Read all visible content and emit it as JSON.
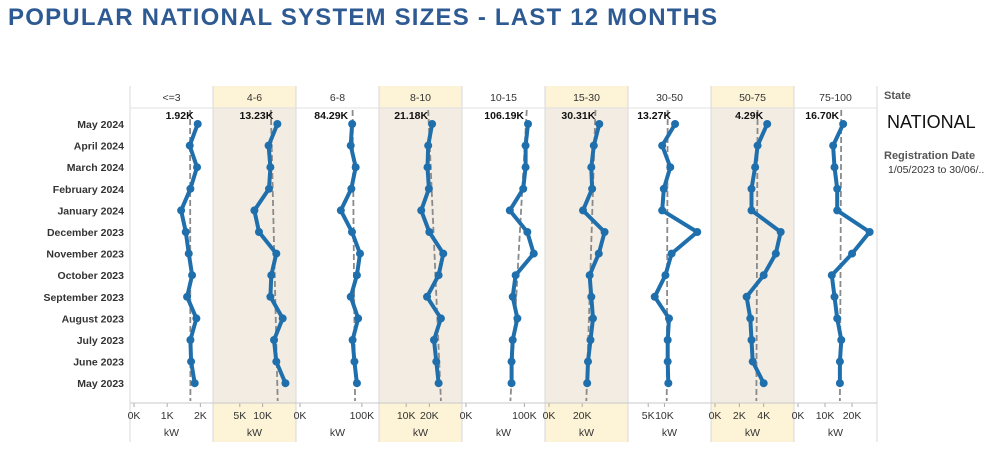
{
  "title": "POPULAR NATIONAL SYSTEM SIZES - LAST 12 MONTHS",
  "filters": {
    "state_label": "State",
    "state_value": "NATIONAL",
    "date_label": "Registration Date",
    "date_value": "1/05/2023 to 30/06/.."
  },
  "colors": {
    "line": "#1f6fad",
    "band": "#f3ece2",
    "band_header": "#fdf3d6",
    "trend": "#8a8a8a",
    "title": "#2e5a94"
  },
  "chart_data": {
    "type": "line",
    "orientation": "vertical-small-multiples",
    "unit_label": "kW",
    "categories": [
      "May 2024",
      "April 2024",
      "March 2024",
      "February 2024",
      "January 2024",
      "December 2023",
      "November 2023",
      "October 2023",
      "September 2023",
      "August 2023",
      "July 2023",
      "June 2023",
      "May 2023"
    ],
    "panels": [
      {
        "name": "<=3",
        "shaded": false,
        "top_label": "1.92K",
        "max": 2200,
        "ticks": [
          {
            "v": 0,
            "t": "0K"
          },
          {
            "v": 1000,
            "t": "1K"
          },
          {
            "v": 2000,
            "t": "2K"
          }
        ],
        "values": [
          1920,
          1680,
          1900,
          1700,
          1420,
          1560,
          1650,
          1750,
          1600,
          1880,
          1700,
          1720,
          1830
        ],
        "trend": [
          1690,
          1700
        ]
      },
      {
        "name": "4-6",
        "shaded": true,
        "top_label": "13.23K",
        "max": 16000,
        "ticks": [
          {
            "v": 5000,
            "t": "5K"
          },
          {
            "v": 10000,
            "t": "10K"
          }
        ],
        "values": [
          13230,
          11300,
          11700,
          11400,
          8200,
          9200,
          13000,
          11900,
          11700,
          14400,
          12500,
          13000,
          15000
        ],
        "trend": [
          11800,
          13300
        ]
      },
      {
        "name": "6-8",
        "shaded": false,
        "top_label": "84.29K",
        "max": 118000,
        "ticks": [
          {
            "v": 0,
            "t": "0K"
          },
          {
            "v": 100000,
            "t": "100K"
          }
        ],
        "values": [
          84290,
          82000,
          90000,
          83000,
          66000,
          84000,
          97000,
          92000,
          82000,
          94000,
          85000,
          88000,
          92000
        ],
        "trend": [
          85000,
          89000
        ]
      },
      {
        "name": "8-10",
        "shaded": true,
        "top_label": "21.18K",
        "max": 31500,
        "ticks": [
          {
            "v": 10000,
            "t": "10K"
          },
          {
            "v": 20000,
            "t": "20K"
          }
        ],
        "values": [
          21180,
          19500,
          19200,
          19800,
          16500,
          20000,
          26000,
          24000,
          19000,
          25000,
          22000,
          23000,
          24000
        ],
        "trend": [
          19500,
          25000
        ]
      },
      {
        "name": "10-15",
        "shaded": false,
        "top_label": "106.19K",
        "max": 125000,
        "ticks": [
          {
            "v": 0,
            "t": "0K"
          },
          {
            "v": 100000,
            "t": "100K"
          }
        ],
        "values": [
          106190,
          102000,
          102000,
          98000,
          75000,
          105000,
          116000,
          85000,
          80000,
          88000,
          80000,
          78000,
          78000
        ],
        "trend": [
          104000,
          76000
        ]
      },
      {
        "name": "15-30",
        "shaded": true,
        "top_label": "30.31K",
        "max": 44000,
        "ticks": [
          {
            "v": 0,
            "t": "0K"
          },
          {
            "v": 20000,
            "t": "20K"
          }
        ],
        "values": [
          30310,
          27000,
          25500,
          26000,
          20500,
          33500,
          30000,
          24500,
          25500,
          26500,
          25000,
          23500,
          23000
        ],
        "trend": [
          28000,
          22500
        ]
      },
      {
        "name": "30-50",
        "shaded": false,
        "top_label": "13.27K",
        "max": 22500,
        "ticks": [
          {
            "v": 5000,
            "t": "5K"
          },
          {
            "v": 10000,
            "t": "10K"
          }
        ],
        "values": [
          13270,
          9300,
          11800,
          9800,
          9300,
          20100,
          12200,
          10300,
          7000,
          11400,
          11000,
          11000,
          11200
        ],
        "trend": [
          11000,
          10700
        ]
      },
      {
        "name": "50-75",
        "shaded": true,
        "top_label": "4.29K",
        "max": 6000,
        "ticks": [
          {
            "v": 0,
            "t": "0K"
          },
          {
            "v": 2000,
            "t": "2K"
          },
          {
            "v": 4000,
            "t": "4K"
          }
        ],
        "values": [
          4290,
          3500,
          3300,
          3000,
          3000,
          5400,
          5000,
          4000,
          2600,
          2900,
          3000,
          3100,
          4000
        ],
        "trend": [
          3500,
          3400
        ]
      },
      {
        "name": "75-100",
        "shaded": false,
        "top_label": "16.70K",
        "max": 27000,
        "ticks": [
          {
            "v": 0,
            "t": "0K"
          },
          {
            "v": 10000,
            "t": "10K"
          },
          {
            "v": 20000,
            "t": "20K"
          }
        ],
        "values": [
          16700,
          13000,
          13500,
          14500,
          14500,
          26500,
          20000,
          12500,
          13500,
          14500,
          16000,
          15500,
          15500
        ],
        "trend": [
          16000,
          15500
        ]
      }
    ]
  }
}
